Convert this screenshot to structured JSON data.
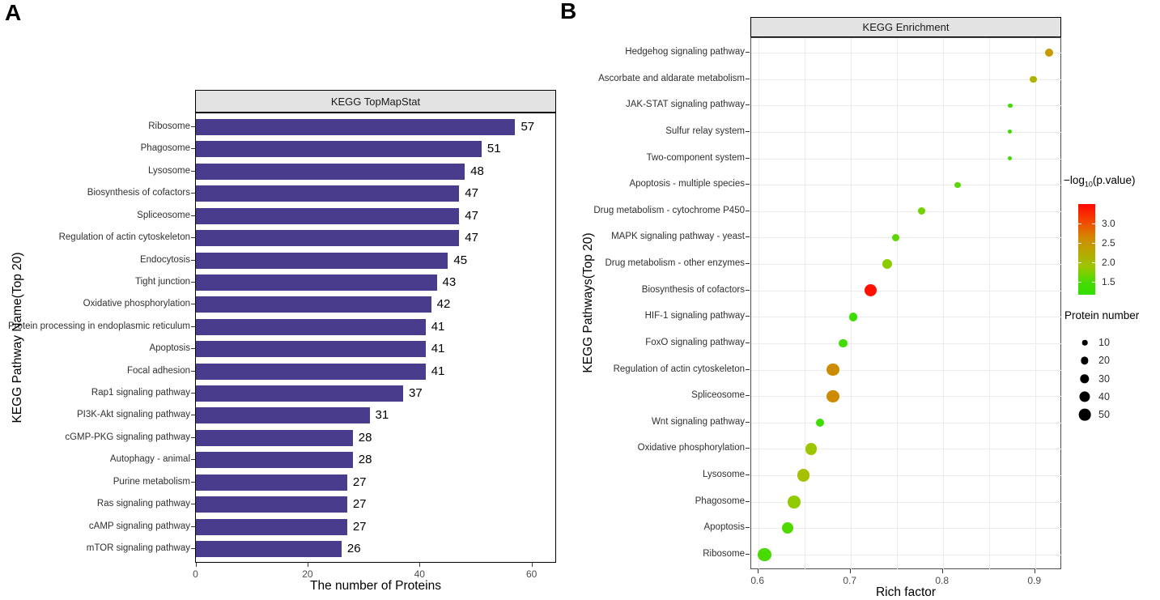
{
  "figure": {
    "panel_a_letter": "A",
    "panel_b_letter": "B"
  },
  "chart_data": [
    {
      "type": "bar",
      "title": "KEGG TopMapStat",
      "xlabel": "The number of Proteins",
      "ylabel": "KEGG Pathway Name(Top 20)",
      "bar_color": "#493c8c",
      "xlim": [
        0,
        64.3
      ],
      "xticks": [
        0,
        20,
        40,
        60
      ],
      "categories": [
        "Ribosome",
        "Phagosome",
        "Lysosome",
        "Biosynthesis of cofactors",
        "Spliceosome",
        "Regulation of actin cytoskeleton",
        "Endocytosis",
        "Tight junction",
        "Oxidative phosphorylation",
        "Protein processing in endoplasmic reticulum",
        "Apoptosis",
        "Focal adhesion",
        "Rap1 signaling pathway",
        "PI3K-Akt signaling pathway",
        "cGMP-PKG signaling pathway",
        "Autophagy - animal",
        "Purine metabolism",
        "Ras signaling pathway",
        "cAMP signaling pathway",
        "mTOR signaling pathway"
      ],
      "values": [
        57,
        51,
        48,
        47,
        47,
        47,
        45,
        43,
        42,
        41,
        41,
        41,
        37,
        31,
        28,
        28,
        27,
        27,
        27,
        26
      ]
    },
    {
      "type": "scatter",
      "title": "KEGG Enrichment",
      "xlabel": "Rich factor",
      "ylabel": "KEGG Pathways(Top 20)",
      "xlim": [
        0.593,
        0.932
      ],
      "xticks": [
        0.6,
        0.7,
        0.8,
        0.9
      ],
      "gridline_step": 0.05,
      "points": [
        {
          "label": "Hedgehog signaling pathway",
          "rich_factor": 0.915,
          "log10_pvalue": 2.4,
          "protein_number": 20,
          "color": "#c89800"
        },
        {
          "label": "Ascorbate and aldarate metabolism",
          "rich_factor": 0.898,
          "log10_pvalue": 2.1,
          "protein_number": 14,
          "color": "#acb400"
        },
        {
          "label": "JAK-STAT signaling pathway",
          "rich_factor": 0.873,
          "log10_pvalue": 1.4,
          "protein_number": 6,
          "color": "#3fdc00"
        },
        {
          "label": "Sulfur relay system",
          "rich_factor": 0.873,
          "log10_pvalue": 1.4,
          "protein_number": 5,
          "color": "#3fdc00"
        },
        {
          "label": "Two-component system",
          "rich_factor": 0.873,
          "log10_pvalue": 1.4,
          "protein_number": 5,
          "color": "#3fdc00"
        },
        {
          "label": "Apoptosis - multiple species",
          "rich_factor": 0.816,
          "log10_pvalue": 1.6,
          "protein_number": 11,
          "color": "#5ad700"
        },
        {
          "label": "Drug metabolism - cytochrome P450",
          "rich_factor": 0.777,
          "log10_pvalue": 1.7,
          "protein_number": 18,
          "color": "#74d100"
        },
        {
          "label": "MAPK signaling pathway - yeast",
          "rich_factor": 0.749,
          "log10_pvalue": 1.6,
          "protein_number": 18,
          "color": "#5ad700"
        },
        {
          "label": "Drug metabolism - other enzymes",
          "rich_factor": 0.74,
          "log10_pvalue": 1.9,
          "protein_number": 30,
          "color": "#8ccb00"
        },
        {
          "label": "Biosynthesis of cofactors",
          "rich_factor": 0.722,
          "log10_pvalue": 3.3,
          "protein_number": 47,
          "color": "#ff1100"
        },
        {
          "label": "HIF-1 signaling pathway",
          "rich_factor": 0.703,
          "log10_pvalue": 1.5,
          "protein_number": 23,
          "color": "#3edc00"
        },
        {
          "label": "FoxO signaling pathway",
          "rich_factor": 0.692,
          "log10_pvalue": 1.4,
          "protein_number": 23,
          "color": "#3edc00"
        },
        {
          "label": "Regulation of actin cytoskeleton",
          "rich_factor": 0.681,
          "log10_pvalue": 2.6,
          "protein_number": 47,
          "color": "#cc8b00"
        },
        {
          "label": "Spliceosome",
          "rich_factor": 0.681,
          "log10_pvalue": 2.6,
          "protein_number": 47,
          "color": "#cc8b00"
        },
        {
          "label": "Wnt signaling pathway",
          "rich_factor": 0.667,
          "log10_pvalue": 1.4,
          "protein_number": 23,
          "color": "#3fdc00"
        },
        {
          "label": "Oxidative phosphorylation",
          "rich_factor": 0.657,
          "log10_pvalue": 1.9,
          "protein_number": 42,
          "color": "#9dc600"
        },
        {
          "label": "Lysosome",
          "rich_factor": 0.649,
          "log10_pvalue": 2.0,
          "protein_number": 48,
          "color": "#a6bf00"
        },
        {
          "label": "Phagosome",
          "rich_factor": 0.639,
          "log10_pvalue": 1.9,
          "protein_number": 51,
          "color": "#92ca00"
        },
        {
          "label": "Apoptosis",
          "rich_factor": 0.632,
          "log10_pvalue": 1.5,
          "protein_number": 41,
          "color": "#4fd900"
        },
        {
          "label": "Ribosome",
          "rich_factor": 0.607,
          "log10_pvalue": 1.45,
          "protein_number": 57,
          "color": "#47db00"
        }
      ],
      "legends": {
        "color": {
          "title_prefix": "−log",
          "title_sub": "10",
          "title_suffix": "(p.value)",
          "tick_values": [
            3.0,
            2.5,
            2.0,
            1.5
          ],
          "tick_labels": [
            "3.0",
            "2.5",
            "2.0",
            "1.5"
          ],
          "gradient_top": "#ff0800",
          "gradient_bottom": "#33de00",
          "value_range": [
            1.17,
            3.49
          ]
        },
        "size": {
          "title": "Protein number",
          "entries": [
            "10",
            "20",
            "30",
            "40",
            "50"
          ],
          "entry_values": [
            10,
            20,
            30,
            40,
            50
          ]
        }
      }
    }
  ]
}
